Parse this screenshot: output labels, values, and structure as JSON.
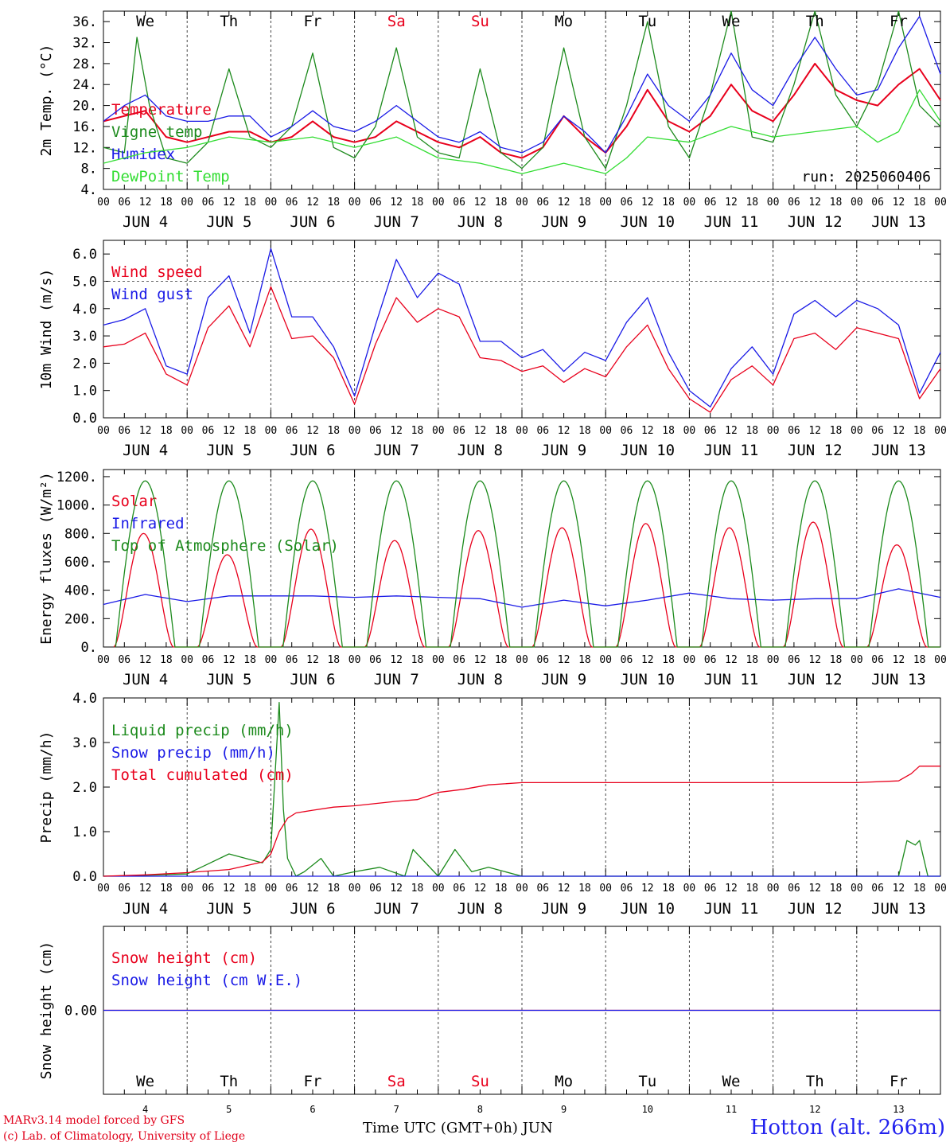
{
  "footer": {
    "model": "MARv3.14 model forced by GFS",
    "lab": "(c) Lab. of Climatology, University of Liege",
    "xlabel": "Time UTC (GMT+0h) JUN",
    "station": "Hotton (alt. 266m)"
  },
  "colors": {
    "red": "#e8001c",
    "green": "#1c8a1c",
    "blue": "#1a1ae6",
    "lightgreen": "#33dd33",
    "weekend": "#e8001c"
  },
  "days": {
    "names": [
      "We",
      "Th",
      "Fr",
      "Sa",
      "Su",
      "Mo",
      "Tu",
      "We",
      "Th",
      "Fr"
    ],
    "weekend": [
      false,
      false,
      false,
      true,
      true,
      false,
      false,
      false,
      false,
      false
    ],
    "dates": [
      "JUN  4",
      "JUN  5",
      "JUN  6",
      "JUN  7",
      "JUN  8",
      "JUN  9",
      "JUN 10",
      "JUN 11",
      "JUN 12",
      "JUN 13"
    ],
    "numbers": [
      "4",
      "5",
      "6",
      "7",
      "8",
      "9",
      "10",
      "11",
      "12",
      "13"
    ],
    "hour_labels": [
      "00",
      "06",
      "12",
      "18"
    ],
    "end_hour": "00"
  },
  "chart_data": [
    {
      "type": "line",
      "ylabel": "2m Temp. (°C)",
      "yticks": [
        "4.",
        "8.",
        "12.",
        "16.",
        "20.",
        "24.",
        "28.",
        "32.",
        "36."
      ],
      "ylim": [
        4,
        38
      ],
      "x_unit": "days from JUN 4 00 UTC",
      "annotation": "run: 2025060406",
      "series": [
        {
          "name": "Temperature",
          "color": "red",
          "x": [
            0,
            0.5,
            0.75,
            1,
            1.25,
            1.5,
            1.75,
            2,
            2.25,
            2.5,
            2.75,
            3,
            3.25,
            3.5,
            3.75,
            4,
            4.25,
            4.5,
            4.75,
            5,
            5.25,
            5.5,
            5.75,
            6,
            6.25,
            6.5,
            6.75,
            7,
            7.25,
            7.5,
            7.75,
            8,
            8.25,
            8.5,
            8.75,
            9,
            9.25,
            9.5,
            9.75,
            10
          ],
          "y": [
            17,
            19,
            14,
            13,
            14,
            15,
            15,
            13,
            14,
            17,
            14,
            13,
            14,
            17,
            15,
            13,
            12,
            14,
            11,
            10,
            12,
            18,
            14,
            11,
            16,
            23,
            17,
            15,
            18,
            24,
            19,
            17,
            22,
            28,
            23,
            21,
            20,
            24,
            27,
            21
          ]
        },
        {
          "name": "Vigne temp",
          "color": "green",
          "x": [
            0,
            0.25,
            0.4,
            0.55,
            0.75,
            1,
            1.25,
            1.5,
            1.75,
            2,
            2.25,
            2.5,
            2.75,
            3,
            3.25,
            3.5,
            3.75,
            4,
            4.25,
            4.5,
            4.75,
            5,
            5.25,
            5.5,
            5.75,
            6,
            6.25,
            6.5,
            6.75,
            7,
            7.25,
            7.5,
            7.75,
            8,
            8.25,
            8.5,
            8.75,
            9,
            9.25,
            9.5,
            9.75,
            10
          ],
          "y": [
            12,
            11,
            33,
            20,
            10,
            9,
            13,
            27,
            14,
            12,
            16,
            30,
            12,
            10,
            16,
            31,
            14,
            11,
            10,
            27,
            11,
            8,
            12,
            31,
            14,
            8,
            20,
            36,
            16,
            10,
            22,
            38,
            14,
            13,
            24,
            38,
            22,
            16,
            24,
            38,
            20,
            16
          ]
        },
        {
          "name": "Humidex",
          "color": "blue",
          "x": [
            0,
            0.25,
            0.5,
            0.75,
            1,
            1.25,
            1.5,
            1.75,
            2,
            2.25,
            2.5,
            2.75,
            3,
            3.25,
            3.5,
            3.75,
            4,
            4.25,
            4.5,
            4.75,
            5,
            5.25,
            5.5,
            5.75,
            6,
            6.25,
            6.5,
            6.75,
            7,
            7.25,
            7.5,
            7.75,
            8,
            8.25,
            8.5,
            8.75,
            9,
            9.25,
            9.5,
            9.75,
            10
          ],
          "y": [
            17,
            20,
            22,
            18,
            17,
            17,
            18,
            18,
            14,
            16,
            19,
            16,
            15,
            17,
            20,
            17,
            14,
            13,
            15,
            12,
            11,
            13,
            18,
            15,
            11,
            18,
            26,
            20,
            17,
            22,
            30,
            23,
            20,
            27,
            33,
            27,
            22,
            23,
            31,
            37,
            26
          ]
        },
        {
          "name": "DewPoint Temp",
          "color": "lightgreen",
          "x": [
            0,
            0.5,
            1,
            1.5,
            2,
            2.5,
            3,
            3.5,
            4,
            4.5,
            5,
            5.5,
            6,
            6.25,
            6.5,
            7,
            7.5,
            8,
            8.5,
            9,
            9.25,
            9.5,
            9.75,
            10
          ],
          "y": [
            9,
            11,
            12,
            14,
            13,
            14,
            12,
            14,
            10,
            9,
            7,
            9,
            7,
            10,
            14,
            13,
            16,
            14,
            15,
            16,
            13,
            15,
            23,
            17
          ]
        }
      ]
    },
    {
      "type": "line",
      "ylabel": "10m Wind (m/s)",
      "yticks": [
        "0.0",
        "1.0",
        "2.0",
        "3.0",
        "4.0",
        "5.0",
        "6.0"
      ],
      "ylim": [
        0,
        6.5
      ],
      "dashed_y": 5,
      "x_unit": "days from JUN 4 00 UTC",
      "series": [
        {
          "name": "Wind speed",
          "color": "red",
          "x": [
            0,
            0.25,
            0.5,
            0.75,
            1,
            1.25,
            1.5,
            1.75,
            2,
            2.25,
            2.5,
            2.75,
            3,
            3.25,
            3.5,
            3.75,
            4,
            4.25,
            4.5,
            4.75,
            5,
            5.25,
            5.5,
            5.75,
            6,
            6.25,
            6.5,
            6.75,
            7,
            7.25,
            7.5,
            7.75,
            8,
            8.25,
            8.5,
            8.75,
            9,
            9.25,
            9.5,
            9.75,
            10
          ],
          "y": [
            2.6,
            2.7,
            3.1,
            1.6,
            1.2,
            3.3,
            4.1,
            2.6,
            4.8,
            2.9,
            3,
            2.2,
            0.5,
            2.7,
            4.4,
            3.5,
            4,
            3.7,
            2.2,
            2.1,
            1.7,
            1.9,
            1.3,
            1.8,
            1.5,
            2.6,
            3.4,
            1.8,
            0.7,
            0.2,
            1.4,
            1.9,
            1.2,
            2.9,
            3.1,
            2.5,
            3.3,
            3.1,
            2.9,
            0.7,
            1.8
          ]
        },
        {
          "name": "Wind gust",
          "color": "blue",
          "x": [
            0,
            0.25,
            0.5,
            0.75,
            1,
            1.25,
            1.5,
            1.75,
            2,
            2.25,
            2.5,
            2.75,
            3,
            3.25,
            3.5,
            3.75,
            4,
            4.25,
            4.5,
            4.75,
            5,
            5.25,
            5.5,
            5.75,
            6,
            6.25,
            6.5,
            6.75,
            7,
            7.25,
            7.5,
            7.75,
            8,
            8.25,
            8.5,
            8.75,
            9,
            9.25,
            9.5,
            9.75,
            10
          ],
          "y": [
            3.4,
            3.6,
            4,
            1.9,
            1.6,
            4.4,
            5.2,
            3.1,
            6.2,
            3.7,
            3.7,
            2.6,
            0.8,
            3.4,
            5.8,
            4.4,
            5.3,
            4.9,
            2.8,
            2.8,
            2.2,
            2.5,
            1.7,
            2.4,
            2.1,
            3.5,
            4.4,
            2.4,
            1,
            0.4,
            1.8,
            2.6,
            1.6,
            3.8,
            4.3,
            3.7,
            4.3,
            4,
            3.4,
            0.9,
            2.4
          ]
        }
      ]
    },
    {
      "type": "line",
      "ylabel": "Energy fluxes (W/m²)",
      "yticks": [
        "0.",
        "200.",
        "400.",
        "600.",
        "800.",
        "1000.",
        "1200."
      ],
      "ylim": [
        0,
        1250
      ],
      "x_unit": "days from JUN 4 00 UTC",
      "series": [
        {
          "name": "Solar",
          "color": "red",
          "peaks": [
            800,
            650,
            830,
            750,
            820,
            840,
            870,
            840,
            880,
            720
          ]
        },
        {
          "name": "Infrared",
          "color": "blue",
          "x": [
            0,
            0.5,
            1,
            1.5,
            2,
            2.5,
            3,
            3.5,
            4,
            4.5,
            5,
            5.5,
            6,
            6.5,
            7,
            7.5,
            8,
            8.5,
            9,
            9.5,
            10
          ],
          "y": [
            300,
            370,
            320,
            360,
            360,
            360,
            350,
            360,
            350,
            340,
            280,
            330,
            290,
            330,
            380,
            340,
            330,
            340,
            340,
            410,
            350
          ]
        },
        {
          "name": "Top of Atmosphere (Solar)",
          "color": "green",
          "peak": 1170
        }
      ]
    },
    {
      "type": "line",
      "ylabel": "Precip (mm/h)",
      "yticks": [
        "0.0",
        "1.0",
        "2.0",
        "3.0",
        "4.0"
      ],
      "ylim": [
        0,
        4
      ],
      "x_unit": "days from JUN 4 00 UTC",
      "series": [
        {
          "name": "Liquid precip (mm/h)",
          "color": "green",
          "x": [
            0,
            0.5,
            1,
            1.5,
            1.7,
            1.9,
            2,
            2.1,
            2.15,
            2.2,
            2.3,
            2.4,
            2.6,
            2.75,
            3,
            3.3,
            3.6,
            3.7,
            4,
            4.2,
            4.4,
            4.6,
            4.8,
            5,
            9.5,
            9.6,
            9.7,
            9.75,
            9.85,
            10
          ],
          "y": [
            0,
            0.02,
            0.05,
            0.5,
            0.4,
            0.3,
            0.6,
            3.9,
            1.5,
            0.4,
            0,
            0.1,
            0.4,
            0,
            0.1,
            0.2,
            0,
            0.6,
            0,
            0.6,
            0.1,
            0.2,
            0.1,
            0,
            0,
            0.8,
            0.7,
            0.8,
            0,
            0
          ]
        },
        {
          "name": "Snow precip (mm/h)",
          "color": "blue",
          "x": [
            0,
            10
          ],
          "y": [
            0,
            0
          ]
        },
        {
          "name": "Total cumulated (cm)",
          "color": "red",
          "x": [
            0,
            0.5,
            1,
            1.5,
            1.9,
            2,
            2.1,
            2.2,
            2.3,
            2.5,
            2.75,
            3,
            3.5,
            3.75,
            4,
            4.3,
            4.6,
            5,
            6,
            7,
            8,
            9,
            9.5,
            9.65,
            9.75,
            10
          ],
          "y": [
            0,
            0.03,
            0.08,
            0.15,
            0.32,
            0.5,
            1,
            1.3,
            1.42,
            1.48,
            1.55,
            1.58,
            1.68,
            1.72,
            1.88,
            1.95,
            2.05,
            2.1,
            2.1,
            2.1,
            2.1,
            2.1,
            2.14,
            2.3,
            2.47,
            2.47
          ]
        }
      ]
    },
    {
      "type": "line",
      "ylabel": "Snow height (cm)",
      "yticks": [
        "0.00"
      ],
      "x_unit": "days from JUN 4 00 UTC",
      "series": [
        {
          "name": "Snow height (cm)",
          "color": "red",
          "x": [
            0,
            10
          ],
          "y": [
            0,
            0
          ]
        },
        {
          "name": "Snow height (cm W.E.)",
          "color": "blue",
          "x": [
            0,
            10
          ],
          "y": [
            0,
            0
          ]
        }
      ]
    }
  ]
}
